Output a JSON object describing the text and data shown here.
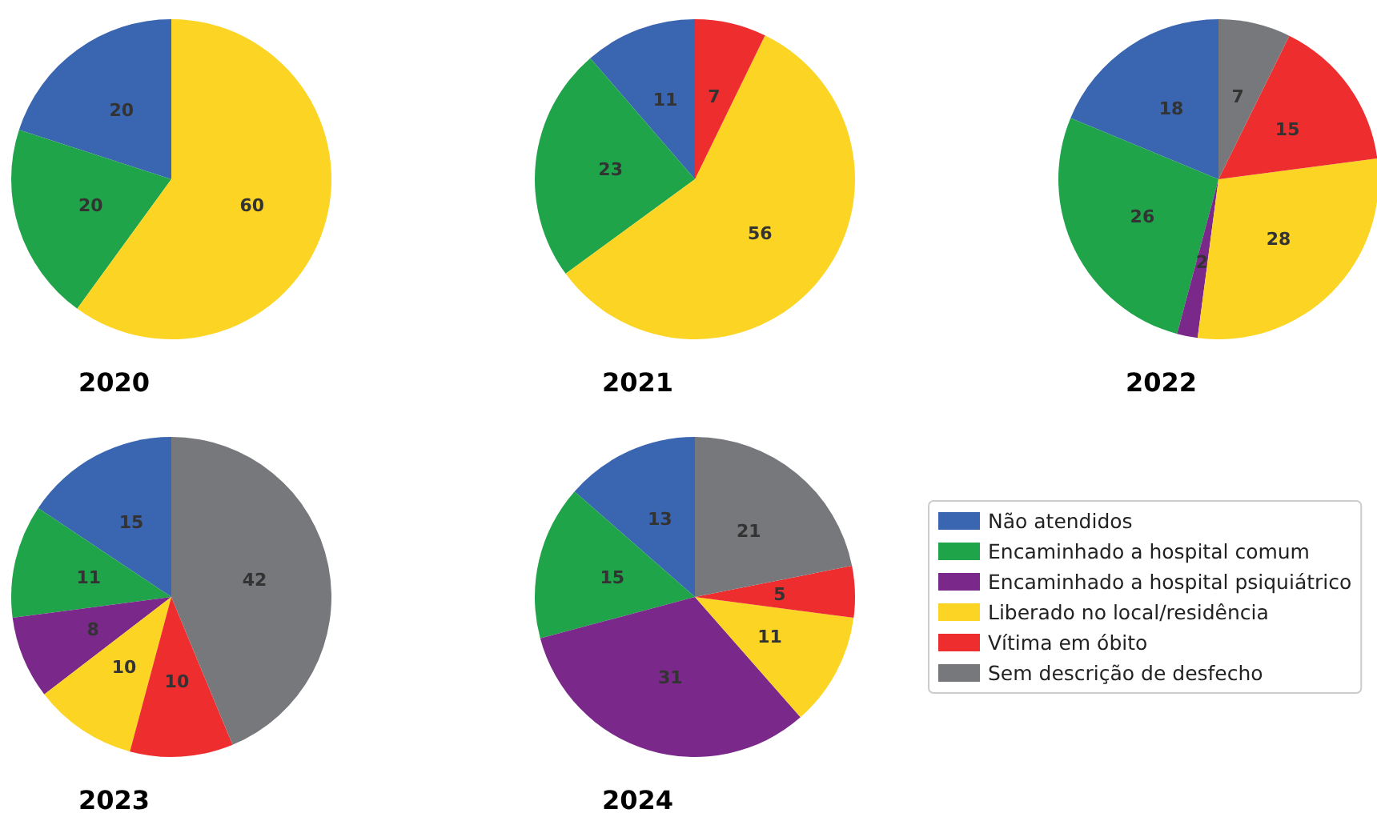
{
  "chart_data": {
    "type": "pie",
    "categories": [
      "Não atendidos",
      "Encaminhado a hospital comum",
      "Encaminhado a hospital psiquiátrico",
      "Liberado no local/residência",
      "Vítima em óbito",
      "Sem descrição de desfecho"
    ],
    "colors": [
      "#3a65b1",
      "#1fa44a",
      "#7a288a",
      "#fcd423",
      "#ee2d2e",
      "#76787b"
    ],
    "data_labels": true,
    "legend": "right",
    "series": [
      {
        "name": "2020",
        "values": [
          20,
          20,
          null,
          60,
          null,
          null
        ]
      },
      {
        "name": "2021",
        "values": [
          11,
          23,
          null,
          56,
          7,
          null
        ]
      },
      {
        "name": "2022",
        "values": [
          18,
          26,
          2,
          28,
          15,
          7
        ]
      },
      {
        "name": "2023",
        "values": [
          15,
          11,
          8,
          10,
          10,
          42
        ]
      },
      {
        "name": "2024",
        "values": [
          13,
          15,
          31,
          11,
          5,
          21
        ]
      }
    ]
  }
}
